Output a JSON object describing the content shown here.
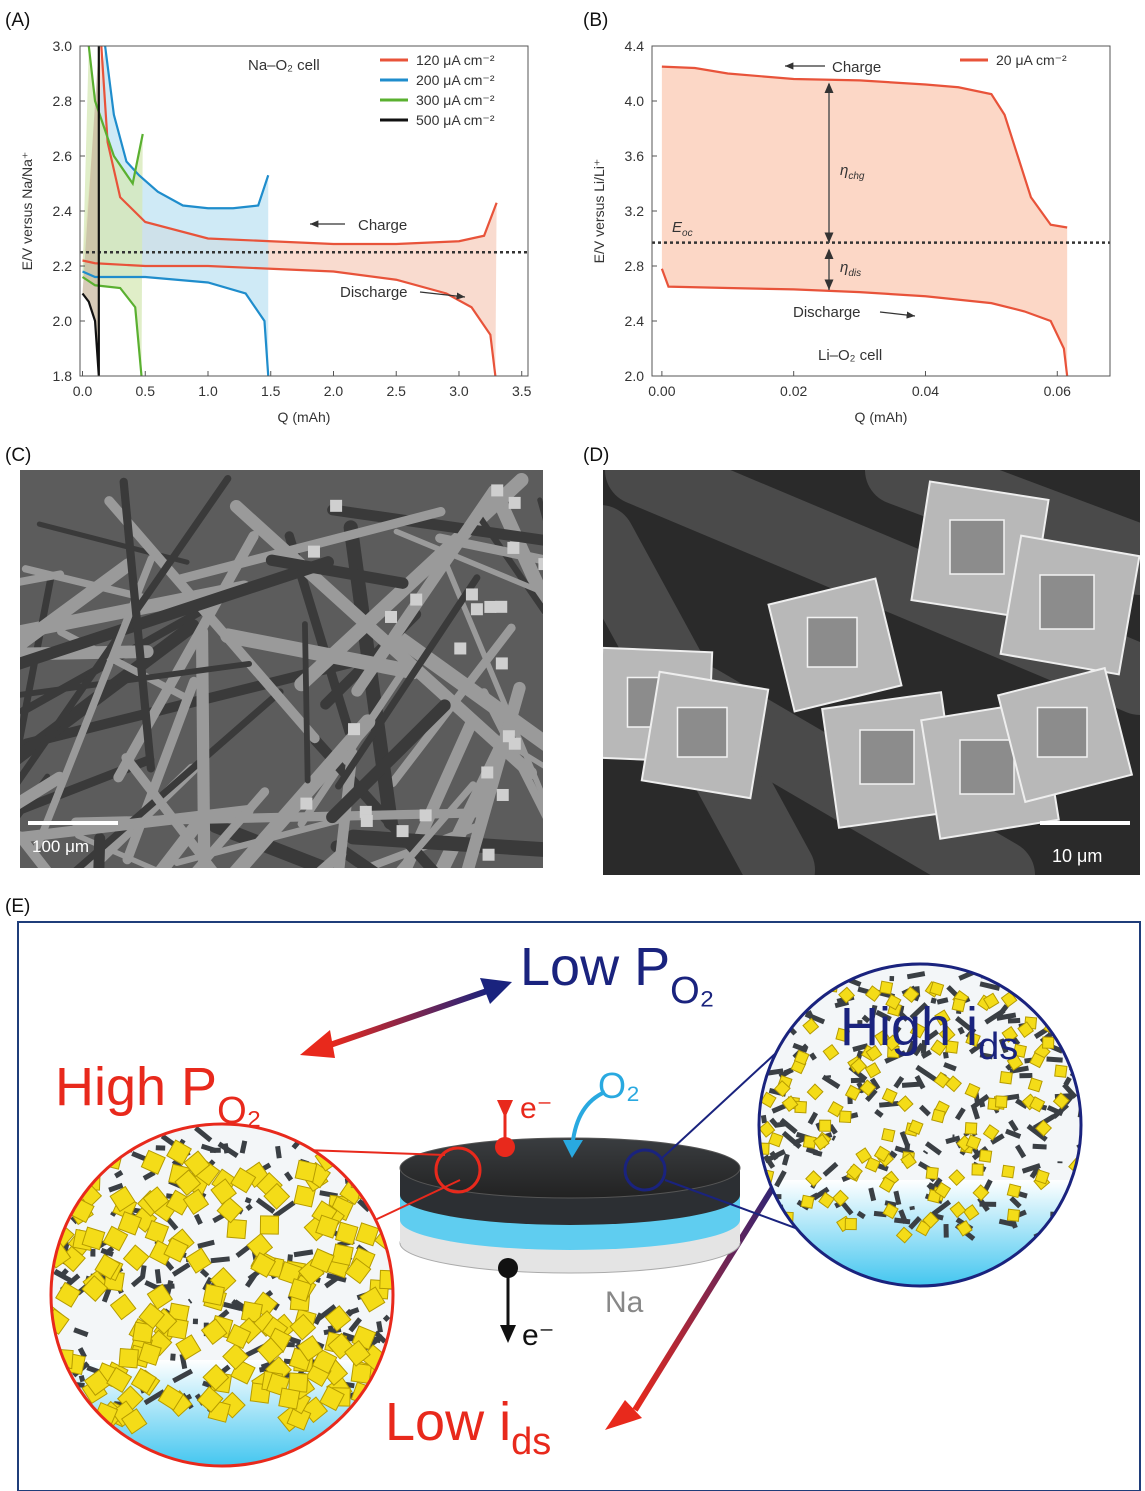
{
  "panel_labels": [
    "(A)",
    "(B)",
    "(C)",
    "(D)",
    "(E)"
  ],
  "chart_data": [
    {
      "type": "line",
      "xlabel": "Q (mAh)",
      "ylabel": "E/V versus Na/Na⁺",
      "xlim": [
        -0.02,
        3.55
      ],
      "ylim": [
        1.8,
        3.0
      ],
      "xticks": [
        {
          "value": 0,
          "label": "0.0"
        },
        0.5,
        {
          "value": 1,
          "label": "1.0"
        },
        1.5,
        {
          "value": 2,
          "label": "2.0"
        },
        2.5,
        {
          "value": 3,
          "label": "3.0"
        },
        3.5
      ],
      "yticks": [
        1.8,
        {
          "value": 2,
          "label": "2.0"
        },
        2.2,
        2.4,
        2.6,
        2.8,
        {
          "value": 3,
          "label": "3.0"
        }
      ],
      "legend": "upper right",
      "reference_line": 2.25,
      "annotations": [
        "Na–O₂ cell",
        "Charge",
        "Discharge"
      ],
      "series": [
        {
          "name": "120 μA cm⁻²",
          "color": "#e8533a",
          "fill": "#f7cfbf",
          "x": [
            0,
            0.1,
            0.5,
            1.0,
            1.5,
            2.0,
            2.5,
            2.9,
            3.1,
            3.25,
            3.29,
            null,
            3.3,
            3.2,
            3.0,
            2.5,
            2.0,
            1.5,
            1.0,
            0.5,
            0.3,
            0.2,
            0.15
          ],
          "values": [
            2.22,
            2.21,
            2.2,
            2.2,
            2.19,
            2.18,
            2.15,
            2.1,
            2.05,
            1.95,
            1.8,
            null,
            2.43,
            2.31,
            2.29,
            2.28,
            2.28,
            2.29,
            2.3,
            2.36,
            2.45,
            2.65,
            3.0
          ]
        },
        {
          "name": "200 μA cm⁻²",
          "color": "#1f8dcc",
          "fill": "#bfe3f3",
          "x": [
            0,
            0.1,
            0.5,
            1.0,
            1.3,
            1.45,
            1.48,
            null,
            1.48,
            1.4,
            1.2,
            1.0,
            0.8,
            0.6,
            0.45,
            0.35,
            0.25,
            0.18
          ],
          "values": [
            2.18,
            2.16,
            2.16,
            2.14,
            2.1,
            2.0,
            1.8,
            null,
            2.53,
            2.42,
            2.41,
            2.41,
            2.42,
            2.47,
            2.53,
            2.58,
            2.75,
            3.0
          ]
        },
        {
          "name": "300 μA cm⁻²",
          "color": "#5ab030",
          "fill": "#d5e8b5",
          "x": [
            0,
            0.1,
            0.3,
            0.42,
            0.47,
            null,
            0.48,
            0.4,
            0.25,
            0.1,
            0.05
          ],
          "values": [
            2.16,
            2.13,
            2.12,
            2.05,
            1.8,
            null,
            2.68,
            2.5,
            2.6,
            2.8,
            3.0
          ]
        },
        {
          "name": "500 μA cm⁻²",
          "color": "#111111",
          "fill": "#c9b9a0",
          "x": [
            0,
            0.05,
            0.1,
            0.13,
            null,
            0.13,
            0.13
          ],
          "values": [
            2.1,
            2.07,
            2.0,
            1.8,
            null,
            1.8,
            3.0
          ]
        }
      ]
    },
    {
      "type": "line",
      "xlabel": "Q (mAh)",
      "ylabel": "E/V versus Li/Li⁺",
      "xlim": [
        -0.0015,
        0.068
      ],
      "ylim": [
        2.0,
        4.4
      ],
      "xticks": [
        {
          "value": 0,
          "label": "0.00"
        },
        0.02,
        0.04,
        0.06
      ],
      "yticks": [
        {
          "value": 2,
          "label": "2.0"
        },
        2.4,
        2.8,
        3.2,
        3.6,
        {
          "value": 4,
          "label": "4.0"
        },
        4.4
      ],
      "legend": "upper right",
      "reference_line": 2.97,
      "annotations": [
        "Charge",
        "Discharge",
        "Li–O₂ cell",
        {
          "text": "E",
          "sub": "oc"
        },
        {
          "text": "η",
          "sub": "chg"
        },
        {
          "text": "η",
          "sub": "dis"
        }
      ],
      "series": [
        {
          "name": "20 μA cm⁻²",
          "color": "#e8533a",
          "fill": "#fbc9b3",
          "x": [
            0,
            0.001,
            0.01,
            0.02,
            0.03,
            0.04,
            0.05,
            0.055,
            0.059,
            0.061,
            0.0615,
            null,
            0.0615,
            0.059,
            0.056,
            0.054,
            0.052,
            0.05,
            0.045,
            0.04,
            0.03,
            0.02,
            0.01,
            0.005,
            0
          ],
          "values": [
            2.78,
            2.65,
            2.64,
            2.63,
            2.61,
            2.58,
            2.53,
            2.47,
            2.4,
            2.2,
            2.0,
            null,
            3.08,
            3.1,
            3.3,
            3.6,
            3.9,
            4.05,
            4.1,
            4.12,
            4.15,
            4.16,
            4.2,
            4.24,
            4.25
          ]
        }
      ]
    }
  ],
  "micrographs": [
    {
      "scale_bar": "100 μm"
    },
    {
      "scale_bar": "10 μm"
    }
  ],
  "diagram": {
    "low_p": {
      "text": "Low P",
      "sub": "O₂"
    },
    "high_p": {
      "text": "High P",
      "sub": "O₂"
    },
    "high_i": {
      "text": "High i",
      "sub": "ds"
    },
    "low_i": {
      "text": "Low i",
      "sub": "ds"
    },
    "electron_top": "e⁻",
    "oxygen": "O₂",
    "anode": "Na",
    "electron_bottom": "e⁻"
  }
}
